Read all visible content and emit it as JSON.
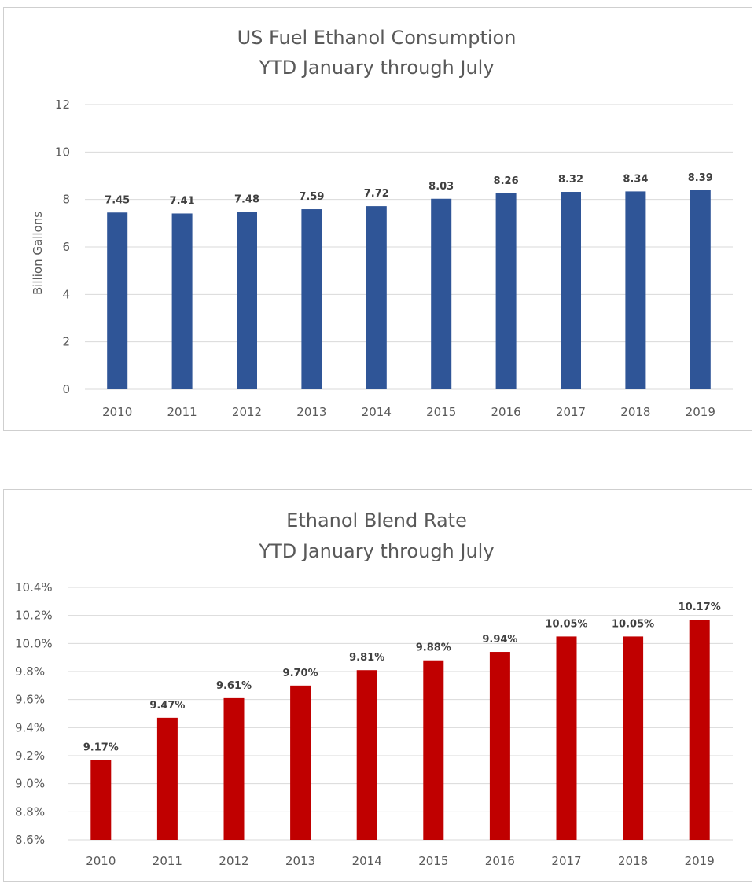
{
  "chart_data": [
    {
      "type": "bar",
      "title": "US Fuel Ethanol Consumption",
      "subtitle": "YTD January through July",
      "xlabel": "",
      "ylabel": "Billion Gallons",
      "categories": [
        "2010",
        "2011",
        "2012",
        "2013",
        "2014",
        "2015",
        "2016",
        "2017",
        "2018",
        "2019"
      ],
      "values": [
        7.45,
        7.41,
        7.48,
        7.59,
        7.72,
        8.03,
        8.26,
        8.32,
        8.34,
        8.39
      ],
      "data_labels": [
        "7.45",
        "7.41",
        "7.48",
        "7.59",
        "7.72",
        "8.03",
        "8.26",
        "8.32",
        "8.34",
        "8.39"
      ],
      "yticks": [
        "0",
        "2",
        "4",
        "6",
        "8",
        "10",
        "12"
      ],
      "ylim": [
        0,
        12
      ],
      "grid": true,
      "legend": "none",
      "bar_color": "#2F5597"
    },
    {
      "type": "bar",
      "title": "Ethanol Blend Rate",
      "subtitle": "YTD January through July",
      "xlabel": "",
      "ylabel": "",
      "categories": [
        "2010",
        "2011",
        "2012",
        "2013",
        "2014",
        "2015",
        "2016",
        "2017",
        "2018",
        "2019"
      ],
      "values": [
        9.17,
        9.47,
        9.61,
        9.7,
        9.81,
        9.88,
        9.94,
        10.05,
        10.05,
        10.17
      ],
      "data_labels": [
        "9.17%",
        "9.47%",
        "9.61%",
        "9.70%",
        "9.81%",
        "9.88%",
        "9.94%",
        "10.05%",
        "10.05%",
        "10.17%"
      ],
      "yticks": [
        "8.6%",
        "8.8%",
        "9.0%",
        "9.2%",
        "9.4%",
        "9.6%",
        "9.8%",
        "10.0%",
        "10.2%",
        "10.4%"
      ],
      "ylim": [
        8.6,
        10.4
      ],
      "grid": true,
      "legend": "none",
      "bar_color": "#C00000"
    }
  ]
}
